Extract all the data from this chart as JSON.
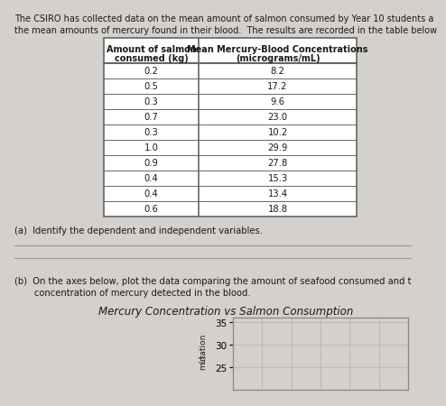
{
  "intro_text_line1": "The CSIRO has collected data on the mean amount of salmon consumed by Year 10 students a",
  "intro_text_line2": "the mean amounts of mercury found in their blood.  The results are recorded in the table below",
  "salmon": [
    0.2,
    0.5,
    0.3,
    0.7,
    0.3,
    1.0,
    0.9,
    0.4,
    0.4,
    0.6
  ],
  "mercury": [
    8.2,
    17.2,
    9.6,
    23.0,
    10.2,
    29.9,
    27.8,
    15.3,
    13.4,
    18.8
  ],
  "part_a_text": "(a)  Identify the dependent and independent variables.",
  "part_b_text_line1": "(b)  On the axes below, plot the data comparing the amount of seafood consumed and t",
  "part_b_text_line2": "       concentration of mercury detected in the blood.",
  "chart_title": "Mercury Concentration vs Salmon Consumption",
  "background_color": "#d4d0cc",
  "text_color": "#1a1a1a",
  "table_bg": "#ffffff",
  "table_border": "#666666",
  "chart_bg": "#d4d0cc",
  "chart_border": "#888888",
  "chart_grid": "#bbbbbb",
  "y_ticks": [
    25,
    30,
    35
  ],
  "ylabel_line1": "rtation",
  "ylabel_line2": "mL)"
}
